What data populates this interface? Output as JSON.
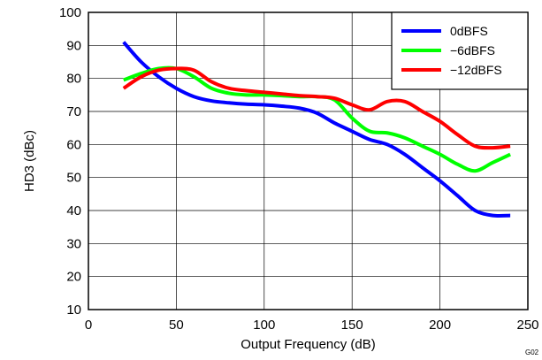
{
  "chart_data": {
    "type": "line",
    "title": "",
    "xlabel": "Output Frequency (dB)",
    "ylabel": "HD3 (dBc)",
    "xlim": [
      0,
      250
    ],
    "ylim": [
      10,
      100
    ],
    "xticks": [
      0,
      50,
      100,
      150,
      200,
      250
    ],
    "yticks": [
      10,
      20,
      30,
      40,
      50,
      60,
      70,
      80,
      90,
      100
    ],
    "grid": true,
    "legend_position": "top-right",
    "figure_id": "G02",
    "series": [
      {
        "name": "0dBFS",
        "color": "#0000ff",
        "x": [
          20,
          30,
          40,
          50,
          60,
          70,
          80,
          90,
          100,
          110,
          120,
          130,
          140,
          150,
          160,
          170,
          180,
          190,
          200,
          210,
          220,
          230,
          240
        ],
        "y": [
          91,
          85,
          80.5,
          77,
          74.5,
          73.2,
          72.6,
          72.2,
          72,
          71.6,
          71,
          69.5,
          66.5,
          64,
          61.5,
          60,
          57,
          53,
          49,
          44.5,
          40,
          38.5,
          38.5
        ]
      },
      {
        "name": "−6dBFS",
        "color": "#00ff00",
        "x": [
          20,
          30,
          40,
          50,
          60,
          70,
          80,
          90,
          100,
          110,
          120,
          130,
          140,
          150,
          160,
          170,
          180,
          190,
          200,
          210,
          220,
          230,
          240
        ],
        "y": [
          79.5,
          81.5,
          83,
          83,
          80.5,
          77,
          75.5,
          75,
          75,
          74.8,
          74.5,
          74.5,
          73.5,
          68,
          64,
          63.5,
          62,
          59.5,
          57,
          54,
          52,
          54.5,
          57
        ]
      },
      {
        "name": "−12dBFS",
        "color": "#ff0000",
        "x": [
          20,
          30,
          40,
          50,
          60,
          70,
          80,
          90,
          100,
          110,
          120,
          130,
          140,
          150,
          160,
          170,
          180,
          190,
          200,
          210,
          220,
          230,
          240
        ],
        "y": [
          77,
          80.5,
          82.5,
          83,
          82.5,
          79,
          77,
          76.3,
          75.8,
          75.3,
          74.8,
          74.5,
          74,
          72,
          70.5,
          73,
          73,
          70,
          67,
          63,
          59.5,
          59,
          59.5
        ]
      }
    ]
  }
}
